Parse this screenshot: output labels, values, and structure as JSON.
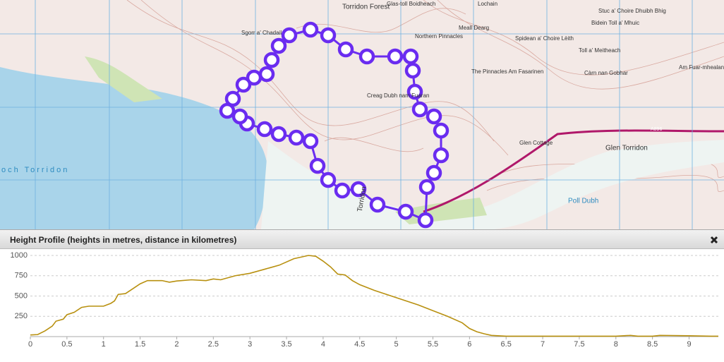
{
  "map": {
    "labels": [
      "Torridon Forest",
      "Glas-toll Boidheach",
      "Lochain",
      "Stuc a' Choire Dhuibh Bhig",
      "Bidein Toll a' Mhuic",
      "Meall Dearg",
      "Northern Pinnacles",
      "Sgorr a' Chadail",
      "Spidean a' Choire Lèith",
      "Toll a' Meitheach",
      "The Pinnacles Am Fasarinen",
      "Càrn nan Gobhar",
      "Am Fuar-mhealan",
      "Creag Dubh nam Fuaran",
      "och Torridon",
      "Glen Torridon",
      "Poll Dubh",
      "A896",
      "Glen Cottage",
      "Torridon"
    ]
  },
  "panel": {
    "title": "Height Profile (heights in metres, distance in kilometres)"
  },
  "chart_data": {
    "type": "line",
    "x": [
      0,
      0.1,
      0.2,
      0.3,
      0.35,
      0.45,
      0.5,
      0.6,
      0.7,
      0.8,
      1.0,
      1.1,
      1.15,
      1.2,
      1.3,
      1.4,
      1.5,
      1.6,
      1.8,
      1.9,
      2.0,
      2.2,
      2.4,
      2.5,
      2.6,
      2.8,
      3.0,
      3.2,
      3.4,
      3.6,
      3.8,
      3.9,
      4.0,
      4.1,
      4.2,
      4.3,
      4.4,
      4.5,
      4.7,
      4.9,
      5.1,
      5.3,
      5.5,
      5.7,
      5.9,
      6.0,
      6.1,
      6.2,
      6.3,
      6.5,
      7.0,
      8.0,
      8.2,
      8.3,
      8.5,
      8.6,
      9.0,
      9.3,
      9.4
    ],
    "series": [
      {
        "color": "#b8900f",
        "values": [
          20,
          25,
          70,
          130,
          190,
          215,
          270,
          300,
          360,
          375,
          375,
          410,
          440,
          520,
          530,
          590,
          650,
          690,
          690,
          670,
          685,
          700,
          690,
          710,
          700,
          750,
          780,
          830,
          880,
          960,
          1000,
          990,
          930,
          860,
          770,
          760,
          690,
          640,
          570,
          510,
          450,
          390,
          320,
          250,
          170,
          100,
          60,
          35,
          15,
          5,
          5,
          5,
          15,
          5,
          5,
          15,
          10,
          5,
          5
        ]
      }
    ],
    "xlim": [
      0,
      9.4
    ],
    "xticks": [
      0,
      0.5,
      1,
      1.5,
      2,
      2.5,
      3,
      3.5,
      4,
      4.5,
      5,
      5.5,
      6,
      6.5,
      7,
      7.5,
      8,
      8.5,
      9
    ],
    "ylim": [
      0,
      1000
    ],
    "yticks": [
      250,
      500,
      750,
      1000
    ],
    "grid": true
  }
}
